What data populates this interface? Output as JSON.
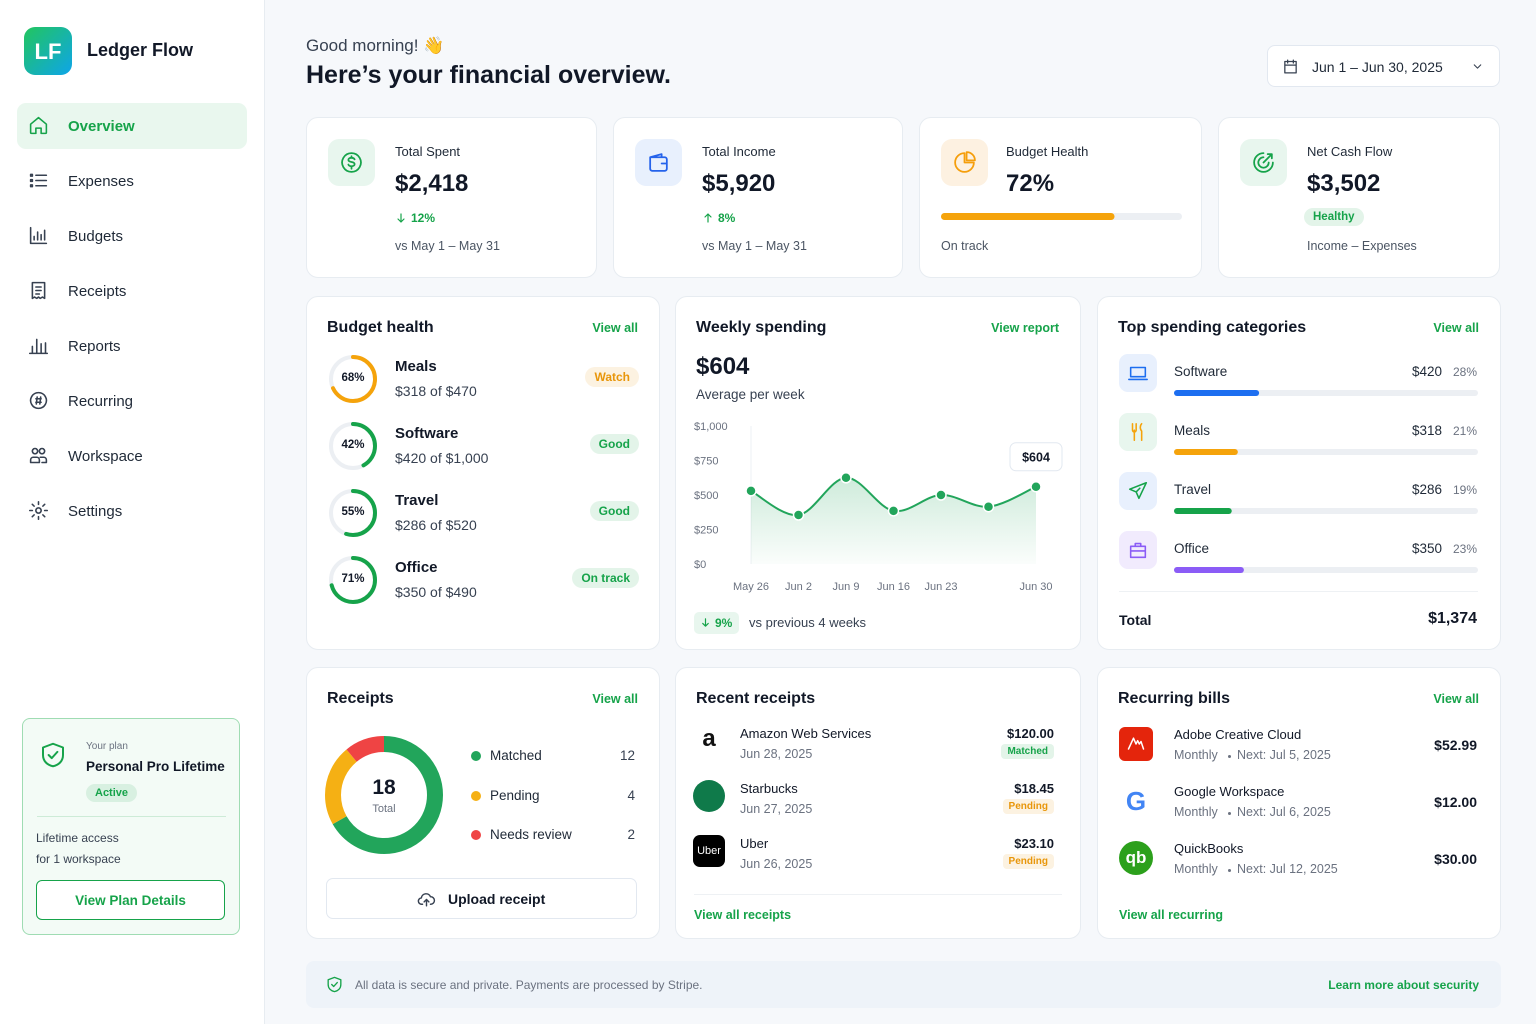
{
  "sidebar": {
    "logo": "LF",
    "brand": "Ledger Flow",
    "active": 0,
    "nav": [
      "Overview",
      "Expenses",
      "Budgets",
      "Receipts",
      "Reports",
      "Recurring",
      "Workspace",
      "Settings"
    ],
    "plan": {
      "caption": "Your plan",
      "name": "Personal Pro Lifetime",
      "status": "Active",
      "note_lines": [
        "Lifetime access",
        "for 1 workspace"
      ],
      "button": "View Plan Details"
    }
  },
  "header": {
    "greeting": "Good morning! 👋",
    "title": "Here’s your financial overview.",
    "date_range": "Jun 1 – Jun 30, 2025"
  },
  "stats": [
    {
      "label": "Total Spent",
      "value": "$2,418",
      "change": "12%",
      "direction": "down",
      "note": "vs May 1 – May 31"
    },
    {
      "label": "Total Income",
      "value": "$5,920",
      "change": "8%",
      "direction": "up",
      "note": "vs May 1 – May 31"
    },
    {
      "label": "Budget Health",
      "value": "72%",
      "percent": 72,
      "color": "#f5a30b",
      "note": "On track"
    },
    {
      "label": "Net Cash Flow",
      "value": "$3,502",
      "badge": "Healthy",
      "note": "Income – Expenses"
    }
  ],
  "budget_health": {
    "title": "Budget health",
    "link": "View all",
    "items": [
      {
        "name": "Meals",
        "percent": 68,
        "percent_label": "68%",
        "color": "#f5a30b",
        "amount": "$318 of $470",
        "status": "Watch",
        "status_color": "#e8960a"
      },
      {
        "name": "Software",
        "percent": 42,
        "percent_label": "42%",
        "color": "#16a34a",
        "amount": "$420 of $1,000",
        "status": "Good",
        "status_color": "#16a34a"
      },
      {
        "name": "Travel",
        "percent": 55,
        "percent_label": "55%",
        "color": "#16a34a",
        "amount": "$286 of $520",
        "status": "Good",
        "status_color": "#16a34a"
      },
      {
        "name": "Office",
        "percent": 71,
        "percent_label": "71%",
        "color": "#16a34a",
        "amount": "$350 of $490",
        "status": "On track",
        "status_color": "#16a34a"
      }
    ]
  },
  "weekly_spending": {
    "title": "Weekly spending",
    "link": "View report",
    "amount": "$604",
    "subtitle": "Average per week",
    "chart": {
      "type": "line",
      "color": "#22a55b",
      "categories": [
        "May 26",
        "Jun 2",
        "Jun 9",
        "Jun 16",
        "Jun 23",
        null,
        "Jun 30"
      ],
      "values": [
        530,
        355,
        625,
        385,
        500,
        415,
        560
      ],
      "ylim": [
        0,
        1000
      ],
      "yticks": [
        {
          "value": 0,
          "label": "$0"
        },
        {
          "value": 250,
          "label": "$250"
        },
        {
          "value": 500,
          "label": "$500"
        },
        {
          "value": 750,
          "label": "$750"
        },
        {
          "value": 1000,
          "label": "$1,000"
        }
      ],
      "callout": "$604"
    },
    "change": "9%",
    "direction": "down",
    "change_note": "vs previous 4 weeks"
  },
  "top_categories": {
    "title": "Top spending categories",
    "link": "View all",
    "items": [
      {
        "name": "Software",
        "amount": "$420",
        "percent": 28,
        "percent_label": "28%",
        "color": "#1d6ef0"
      },
      {
        "name": "Meals",
        "amount": "$318",
        "percent": 21,
        "percent_label": "21%",
        "color": "#f5a30b"
      },
      {
        "name": "Travel",
        "amount": "$286",
        "percent": 19,
        "percent_label": "19%",
        "color": "#16a34a"
      },
      {
        "name": "Office",
        "amount": "$350",
        "percent": 23,
        "percent_label": "23%",
        "color": "#8b5cf6"
      }
    ],
    "total_label": "Total",
    "total": "$1,374"
  },
  "receipts": {
    "title": "Receipts",
    "link": "View all",
    "total": 18,
    "total_label": "Total",
    "segments": [
      {
        "name": "Matched",
        "count": 12,
        "color": "#22a55b"
      },
      {
        "name": "Pending",
        "count": 4,
        "color": "#f5b014"
      },
      {
        "name": "Needs review",
        "count": 2,
        "color": "#ef4444"
      }
    ],
    "button": "Upload receipt"
  },
  "recent_receipts": {
    "title": "Recent receipts",
    "link": "View all receipts",
    "items": [
      {
        "logo": "a",
        "merchant": "Amazon Web Services",
        "date": "Jun 28, 2025",
        "amount": "$120.00",
        "status": "Matched",
        "status_color": "#16a34a"
      },
      {
        "merchant": "Starbucks",
        "date": "Jun 27, 2025",
        "amount": "$18.45",
        "status": "Pending",
        "status_color": "#e8960a"
      },
      {
        "logo": "Uber",
        "merchant": "Uber",
        "date": "Jun 26, 2025",
        "amount": "$23.10",
        "status": "Pending",
        "status_color": "#e8960a"
      }
    ]
  },
  "recurring_bills": {
    "title": "Recurring bills",
    "link": "View all",
    "footer_link": "View all recurring",
    "items": [
      {
        "name": "Adobe Creative Cloud",
        "frequency": "Monthly",
        "next": "Next: Jul 5, 2025",
        "amount": "$52.99"
      },
      {
        "logo": "G",
        "name": "Google Workspace",
        "frequency": "Monthly",
        "next": "Next: Jul 6, 2025",
        "amount": "$12.00"
      },
      {
        "logo": "qb",
        "name": "QuickBooks",
        "frequency": "Monthly",
        "next": "Next: Jul 12, 2025",
        "amount": "$30.00"
      }
    ]
  },
  "footer": {
    "note": "All data is secure and private. Payments are processed by Stripe.",
    "link": "Learn more about security"
  }
}
